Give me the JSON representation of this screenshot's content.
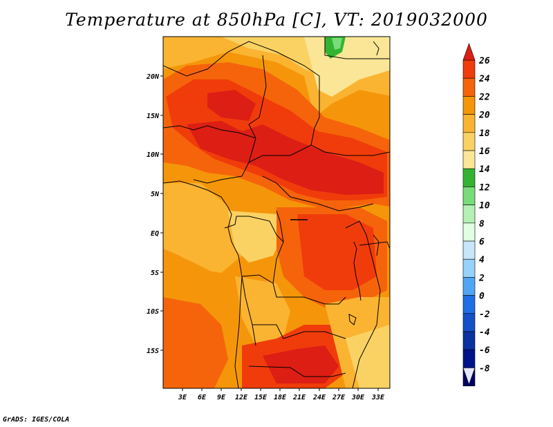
{
  "title": "Temperature at 850hPa [C], VT: 2019032000",
  "credit": "GrADS: IGES/COLA",
  "lat_labels": [
    "20N",
    "15N",
    "10N",
    "5N",
    "EQ",
    "5S",
    "10S",
    "15S"
  ],
  "lon_labels": [
    "3E",
    "6E",
    "9E",
    "12E",
    "15E",
    "18E",
    "21E",
    "24E",
    "27E",
    "30E",
    "33E"
  ],
  "colorbar": {
    "labels": [
      "26",
      "24",
      "22",
      "20",
      "18",
      "16",
      "14",
      "12",
      "10",
      "8",
      "6",
      "4",
      "2",
      "0",
      "-2",
      "-4",
      "-6",
      "-8"
    ],
    "colors": [
      "#dc1e14",
      "#f03c0a",
      "#f5640a",
      "#f5960a",
      "#fab432",
      "#fad264",
      "#fae696",
      "#32b432",
      "#78dc78",
      "#b4f0b4",
      "#e1ffe1",
      "#c8e6fa",
      "#96d2fa",
      "#50a5f5",
      "#1e6ee6",
      "#1450c8",
      "#0a32a0",
      "#00148c",
      "#000064"
    ],
    "over_color": "#dc1e14",
    "under_color": "#e6e6ff"
  }
}
